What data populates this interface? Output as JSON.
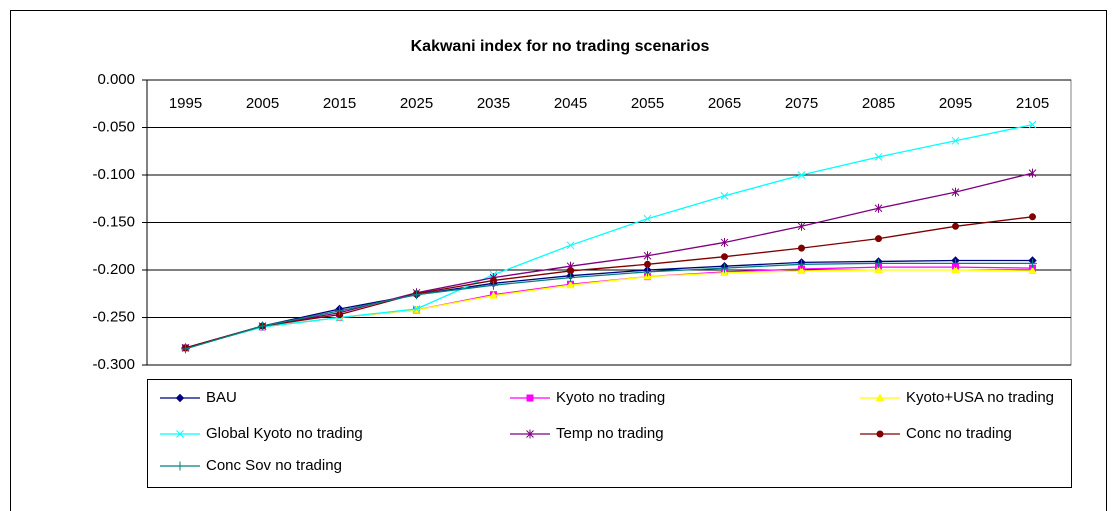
{
  "chart_data": {
    "type": "line",
    "title": "Kakwani index for no trading scenarios",
    "categories": [
      "1995",
      "2005",
      "2015",
      "2025",
      "2035",
      "2045",
      "2055",
      "2065",
      "2075",
      "2085",
      "2095",
      "2105"
    ],
    "ylim": [
      -0.3,
      0
    ],
    "yticks": [
      {
        "value": -0.3,
        "label": "-0.300"
      },
      {
        "value": -0.25,
        "label": "-0.250"
      },
      {
        "value": -0.2,
        "label": "-0.200"
      },
      {
        "value": -0.15,
        "label": "-0.150"
      },
      {
        "value": -0.1,
        "label": "-0.100"
      },
      {
        "value": -0.05,
        "label": "-0.050"
      },
      {
        "value": 0,
        "label": "0.000"
      }
    ],
    "grid": true,
    "series": [
      {
        "name": "BAU",
        "color": "#000080",
        "marker": "diamond",
        "values": [
          -0.282,
          -0.259,
          -0.241,
          -0.226,
          -0.214,
          -0.206,
          -0.2,
          -0.196,
          -0.192,
          -0.191,
          -0.19,
          -0.19
        ]
      },
      {
        "name": "Kyoto no trading",
        "color": "#ff00ff",
        "marker": "square",
        "values": [
          -0.282,
          -0.26,
          -0.25,
          -0.242,
          -0.226,
          -0.215,
          -0.207,
          -0.202,
          -0.199,
          -0.197,
          -0.197,
          -0.198
        ]
      },
      {
        "name": "Kyoto+USA no trading",
        "color": "#ffff00",
        "marker": "triangle",
        "values": [
          -0.282,
          -0.26,
          -0.25,
          -0.242,
          -0.227,
          -0.216,
          -0.207,
          -0.203,
          -0.201,
          -0.2,
          -0.2,
          -0.201
        ]
      },
      {
        "name": "Global Kyoto no trading",
        "color": "#00ffff",
        "marker": "x",
        "values": [
          -0.282,
          -0.26,
          -0.25,
          -0.241,
          -0.205,
          -0.174,
          -0.146,
          -0.122,
          -0.1,
          -0.081,
          -0.064,
          -0.047
        ]
      },
      {
        "name": "Temp no trading",
        "color": "#800080",
        "marker": "star",
        "values": [
          -0.282,
          -0.259,
          -0.245,
          -0.224,
          -0.208,
          -0.196,
          -0.185,
          -0.171,
          -0.154,
          -0.135,
          -0.118,
          -0.098
        ]
      },
      {
        "name": "Conc no trading",
        "color": "#800000",
        "marker": "circle",
        "values": [
          -0.282,
          -0.259,
          -0.247,
          -0.225,
          -0.211,
          -0.201,
          -0.194,
          -0.186,
          -0.177,
          -0.167,
          -0.154,
          -0.144
        ]
      },
      {
        "name": "Conc Sov no trading",
        "color": "#008080",
        "marker": "plus",
        "values": [
          -0.283,
          -0.259,
          -0.243,
          -0.226,
          -0.216,
          -0.208,
          -0.202,
          -0.198,
          -0.194,
          -0.193,
          -0.193,
          -0.193
        ]
      }
    ]
  }
}
